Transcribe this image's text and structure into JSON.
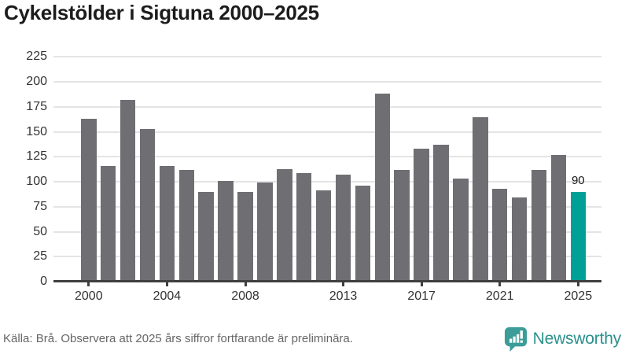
{
  "title": "Cykelstölder i Sigtuna 2000–2025",
  "footer": {
    "source_note": "Källa: Brå. Observera att 2025 års siffror fortfarande är preliminära."
  },
  "branding": {
    "name": "Newsworthy",
    "logo_icon": "newsworthy-chart-bubble-icon"
  },
  "colors": {
    "bar": "#6e6e73",
    "highlight_bar": "#00a096",
    "gridline": "#e4e4e4",
    "axis": "#3f3f3f",
    "title_text": "#1c1c1c",
    "tick_text": "#333333",
    "footer_text": "#666666",
    "brand_teal": "#3c9d98",
    "brand_text_teal": "#2b908c"
  },
  "chart_data": {
    "type": "bar",
    "x": [
      2000,
      2001,
      2002,
      2003,
      2004,
      2005,
      2006,
      2007,
      2008,
      2009,
      2010,
      2011,
      2012,
      2013,
      2014,
      2015,
      2016,
      2017,
      2018,
      2019,
      2020,
      2021,
      2022,
      2023,
      2024,
      2025
    ],
    "values": [
      163,
      116,
      182,
      153,
      116,
      112,
      90,
      101,
      90,
      99,
      113,
      109,
      91,
      107,
      96,
      188,
      112,
      133,
      137,
      103,
      165,
      93,
      84,
      112,
      127,
      90
    ],
    "highlight_year": 2025,
    "highlight_label": "90",
    "y_ticks": [
      0,
      25,
      50,
      75,
      100,
      125,
      150,
      175,
      200,
      225
    ],
    "x_tick_labels": [
      "2000",
      "2004",
      "2008",
      "2013",
      "2017",
      "2021",
      "2025"
    ],
    "ylim": [
      0,
      230
    ],
    "grid": true,
    "legend": null,
    "xlabel": "",
    "ylabel": ""
  }
}
